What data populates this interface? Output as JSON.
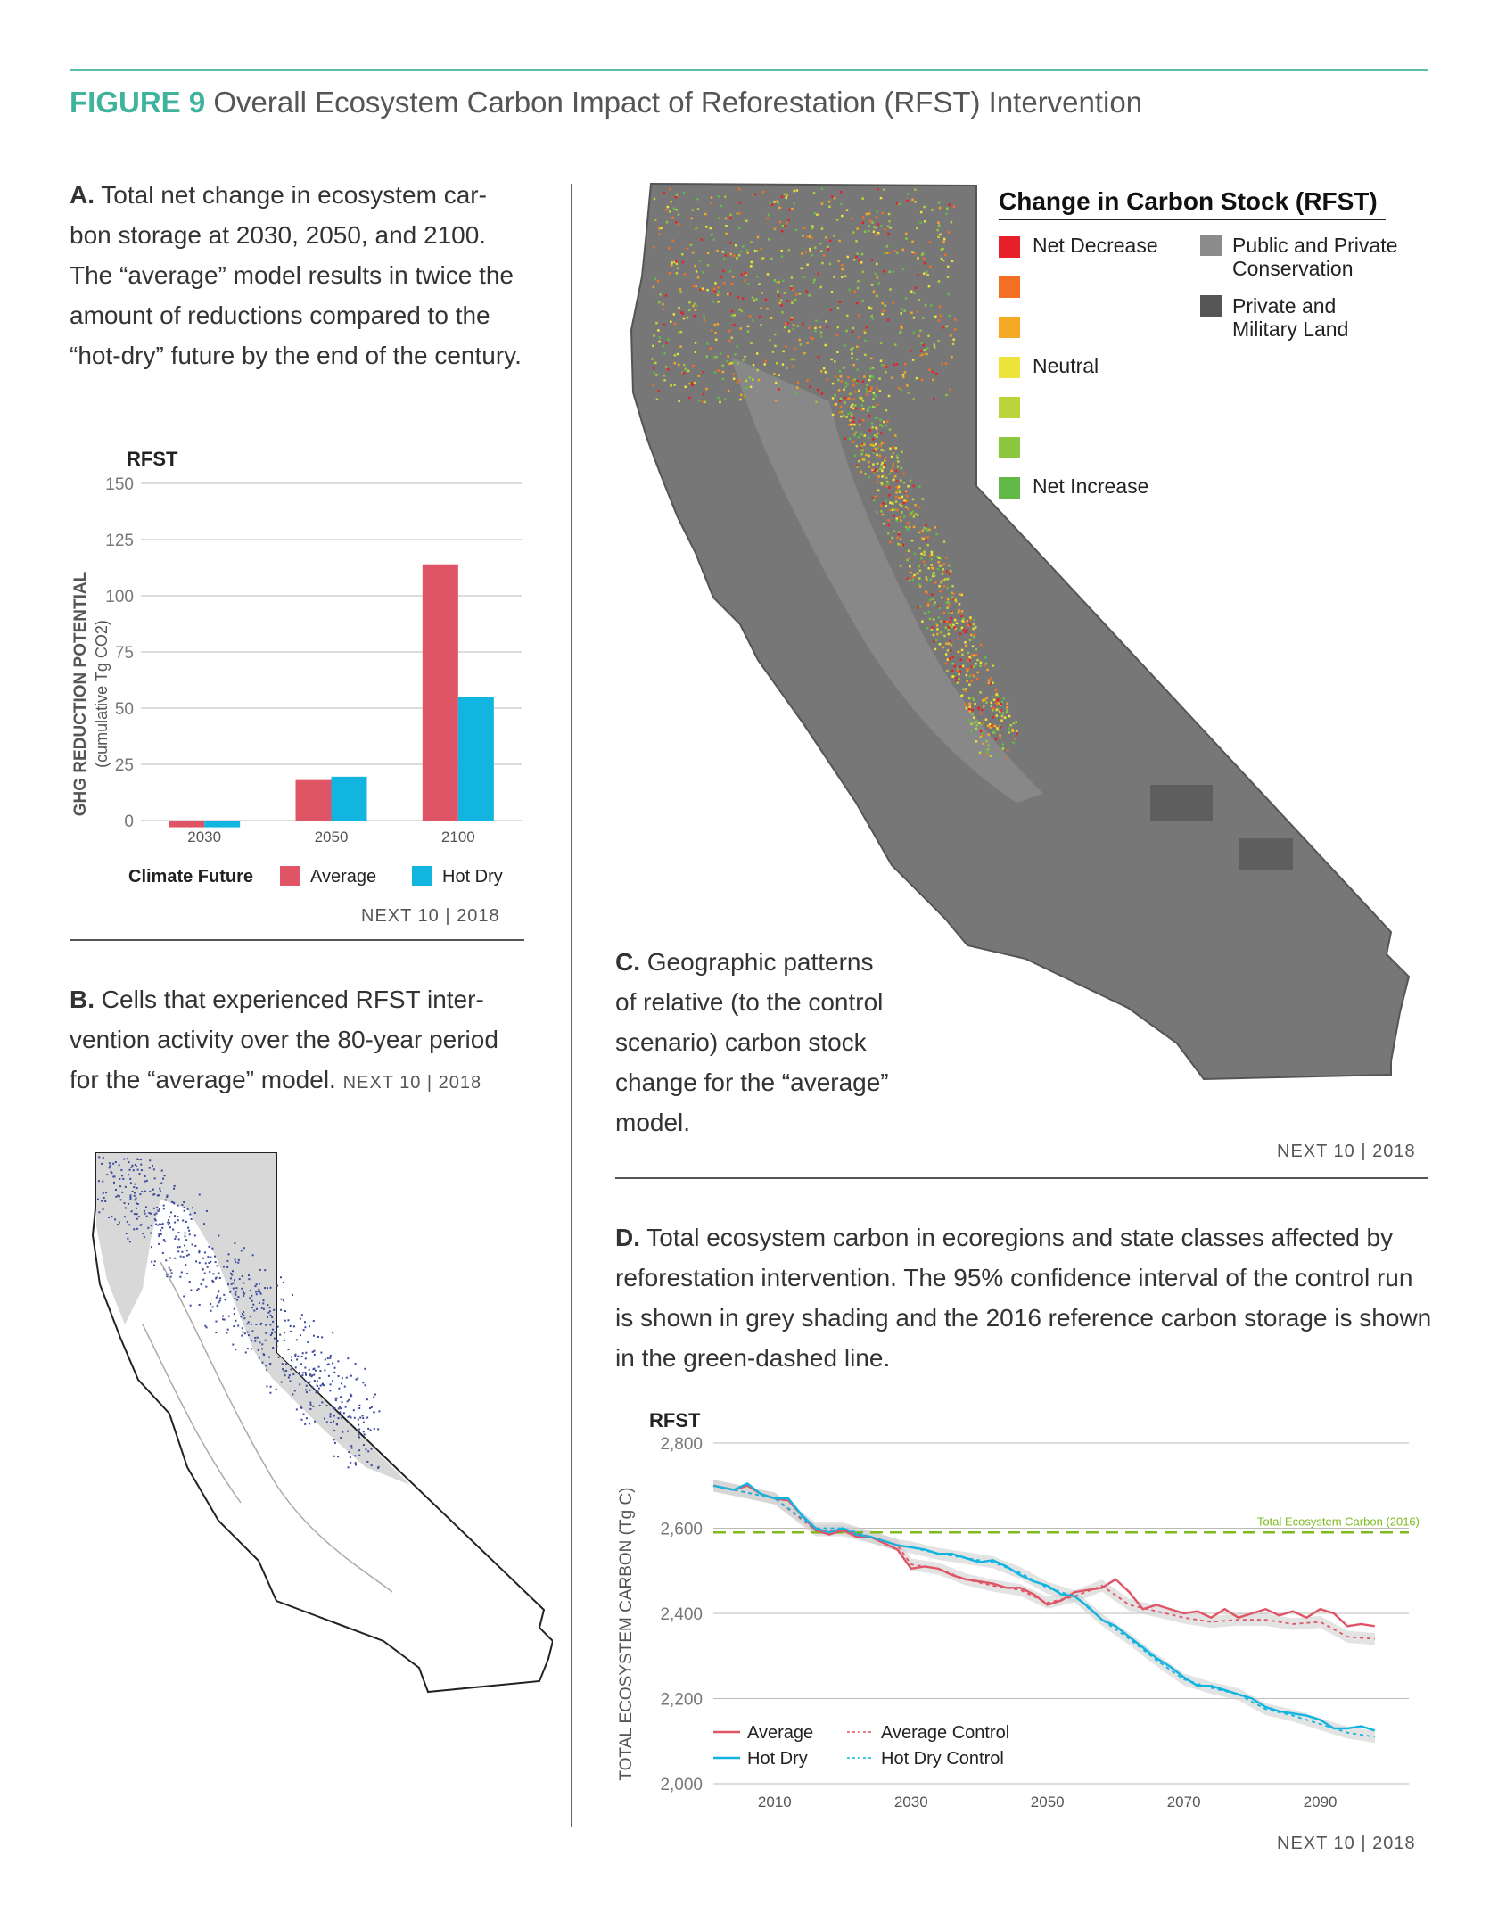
{
  "figure": {
    "lead": "FIGURE 9",
    "title": "Overall Ecosystem Carbon Impact of Reforestation (RFST) Intervention"
  },
  "panel_a": {
    "caption_label": "A.",
    "caption_text": "Total net change in ecosystem car-bon storage at 2030, 2050, and 2100. The “average” model results in twice the amount of reductions compared to the “hot-dry” future by the end of the century.",
    "credit": "NEXT 10 | 2018"
  },
  "panel_b": {
    "caption_label": "B.",
    "caption_text": "Cells that experienced RFST inter-vention activity over the 80-year period for the “average” model.",
    "credit": "NEXT 10 | 2018"
  },
  "panel_c": {
    "caption_label": "C.",
    "caption_text": "Geographic patterns of relative (to the control scenario) carbon stock change for the “average” model.",
    "credit": "NEXT 10 | 2018",
    "legend_title": "Change in Carbon Stock (RFST)",
    "legend_left": [
      {
        "label": "Net Decrease",
        "color": "#e8202a"
      },
      {
        "label": "",
        "color": "#f26f24"
      },
      {
        "label": "",
        "color": "#f4a823"
      },
      {
        "label": "Neutral",
        "color": "#ede33a"
      },
      {
        "label": "",
        "color": "#bcd33a"
      },
      {
        "label": "",
        "color": "#8dc63f"
      },
      {
        "label": "Net Increase",
        "color": "#62b848"
      }
    ],
    "legend_right": [
      {
        "label": "Public and Private Conservation",
        "color": "#8c8c8c"
      },
      {
        "label": "Private and Military Land",
        "color": "#555555"
      }
    ]
  },
  "panel_d": {
    "caption_label": "D.",
    "caption_text": "Total ecosystem carbon in ecoregions and state classes affected by reforestation intervention. The 95% confidence interval of the control run is shown in grey shading and the 2016 reference carbon storage is shown in the green-dashed line.",
    "credit": "NEXT 10 | 2018"
  },
  "chart_data": [
    {
      "type": "bar",
      "title": "RFST",
      "ylabel": "GHG REDUCTION POTENTIAL",
      "ylabel_sub": "(cumulative Tg CO2)",
      "categories": [
        "2030",
        "2050",
        "2100"
      ],
      "yticks": [
        "150",
        "125",
        "100",
        "75",
        "50",
        "25",
        "0"
      ],
      "ylim": [
        -5,
        150
      ],
      "legend_title": "Climate Future",
      "series": [
        {
          "name": "Average",
          "color": "#e05565",
          "values": [
            -3,
            18,
            114
          ]
        },
        {
          "name": "Hot Dry",
          "color": "#11b5e0",
          "values": [
            -3,
            19.5,
            55
          ]
        }
      ]
    },
    {
      "type": "line",
      "title": "RFST",
      "ylabel": "TOTAL ECOSYSTEM CARBON (Tg C)",
      "ylim": [
        2000,
        2800
      ],
      "xlim": [
        2001,
        2103
      ],
      "yticks": [
        "2,800",
        "2,600",
        "2,400",
        "2,200",
        "2,000"
      ],
      "xticks": [
        "2010",
        "2030",
        "2050",
        "2070",
        "2090"
      ],
      "reference": {
        "label": "Total Ecosystem Carbon (2016)",
        "value": 2590,
        "color": "#7dbb1f"
      },
      "series": [
        {
          "name": "Average",
          "color": "#e05565",
          "dashed": false,
          "x": [
            2001,
            2004,
            2006,
            2008,
            2010,
            2012,
            2014,
            2016,
            2018,
            2020,
            2022,
            2024,
            2026,
            2028,
            2030,
            2032,
            2034,
            2036,
            2038,
            2040,
            2042,
            2044,
            2046,
            2048,
            2050,
            2052,
            2054,
            2056,
            2058,
            2060,
            2062,
            2064,
            2066,
            2068,
            2070,
            2072,
            2074,
            2076,
            2078,
            2080,
            2082,
            2084,
            2086,
            2088,
            2090,
            2092,
            2094,
            2096,
            2098
          ],
          "y": [
            2700,
            2690,
            2700,
            2680,
            2670,
            2665,
            2630,
            2595,
            2585,
            2595,
            2580,
            2580,
            2565,
            2550,
            2505,
            2510,
            2505,
            2490,
            2480,
            2475,
            2470,
            2460,
            2460,
            2445,
            2420,
            2430,
            2450,
            2455,
            2460,
            2480,
            2450,
            2410,
            2420,
            2410,
            2400,
            2405,
            2390,
            2410,
            2390,
            2400,
            2410,
            2395,
            2405,
            2390,
            2410,
            2400,
            2370,
            2375,
            2370
          ]
        },
        {
          "name": "Hot Dry",
          "color": "#11b5e0",
          "dashed": false,
          "x": [
            2001,
            2004,
            2006,
            2008,
            2010,
            2012,
            2014,
            2016,
            2018,
            2020,
            2022,
            2024,
            2026,
            2028,
            2030,
            2032,
            2034,
            2036,
            2038,
            2040,
            2042,
            2044,
            2046,
            2048,
            2050,
            2052,
            2054,
            2056,
            2058,
            2060,
            2062,
            2064,
            2066,
            2068,
            2070,
            2072,
            2074,
            2076,
            2078,
            2080,
            2082,
            2084,
            2086,
            2088,
            2090,
            2092,
            2094,
            2096,
            2098
          ],
          "y": [
            2700,
            2690,
            2705,
            2680,
            2670,
            2670,
            2630,
            2600,
            2590,
            2600,
            2585,
            2580,
            2570,
            2560,
            2555,
            2550,
            2540,
            2540,
            2530,
            2520,
            2525,
            2510,
            2490,
            2475,
            2465,
            2445,
            2440,
            2415,
            2385,
            2370,
            2345,
            2320,
            2295,
            2275,
            2250,
            2230,
            2230,
            2220,
            2210,
            2200,
            2180,
            2170,
            2165,
            2160,
            2150,
            2130,
            2130,
            2135,
            2125
          ]
        },
        {
          "name": "Average Control",
          "color": "#e05565",
          "dashed": true,
          "x": [
            2001,
            2010,
            2016,
            2020,
            2024,
            2028,
            2030,
            2034,
            2038,
            2042,
            2046,
            2050,
            2054,
            2058,
            2062,
            2066,
            2070,
            2074,
            2078,
            2082,
            2086,
            2090,
            2094,
            2098
          ],
          "y": [
            2700,
            2670,
            2595,
            2595,
            2580,
            2560,
            2515,
            2505,
            2480,
            2465,
            2455,
            2425,
            2440,
            2465,
            2420,
            2405,
            2390,
            2380,
            2385,
            2385,
            2375,
            2380,
            2345,
            2340
          ]
        },
        {
          "name": "Hot Dry Control",
          "color": "#11b5e0",
          "dashed": true,
          "x": [
            2001,
            2010,
            2016,
            2020,
            2024,
            2028,
            2030,
            2034,
            2038,
            2042,
            2046,
            2050,
            2054,
            2058,
            2062,
            2066,
            2070,
            2074,
            2078,
            2082,
            2086,
            2090,
            2094,
            2098
          ],
          "y": [
            2700,
            2670,
            2600,
            2600,
            2580,
            2560,
            2555,
            2540,
            2530,
            2520,
            2495,
            2460,
            2440,
            2385,
            2340,
            2290,
            2245,
            2225,
            2210,
            2175,
            2160,
            2140,
            2120,
            2110
          ]
        }
      ]
    }
  ]
}
